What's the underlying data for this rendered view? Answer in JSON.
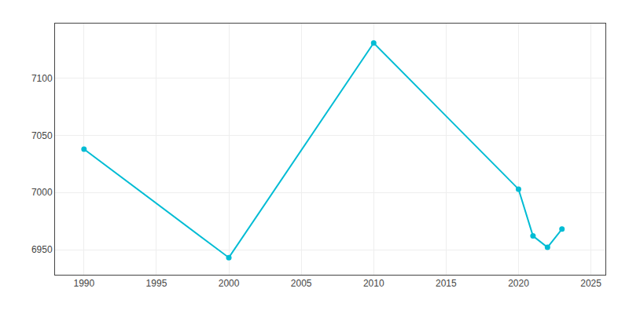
{
  "chart_data": {
    "type": "line",
    "x": [
      1990,
      2000,
      2010,
      2020,
      2021,
      2022,
      2023
    ],
    "values": [
      7038,
      6943,
      7131,
      7003,
      6962,
      6952,
      6968
    ],
    "color": "#00BCD4",
    "marker": "circle",
    "xlim": [
      1988,
      2026
    ],
    "ylim": [
      6928,
      7148
    ],
    "xticks": [
      1990,
      1995,
      2000,
      2005,
      2010,
      2015,
      2020,
      2025
    ],
    "yticks": [
      6950,
      7000,
      7050,
      7100
    ],
    "grid": true
  }
}
